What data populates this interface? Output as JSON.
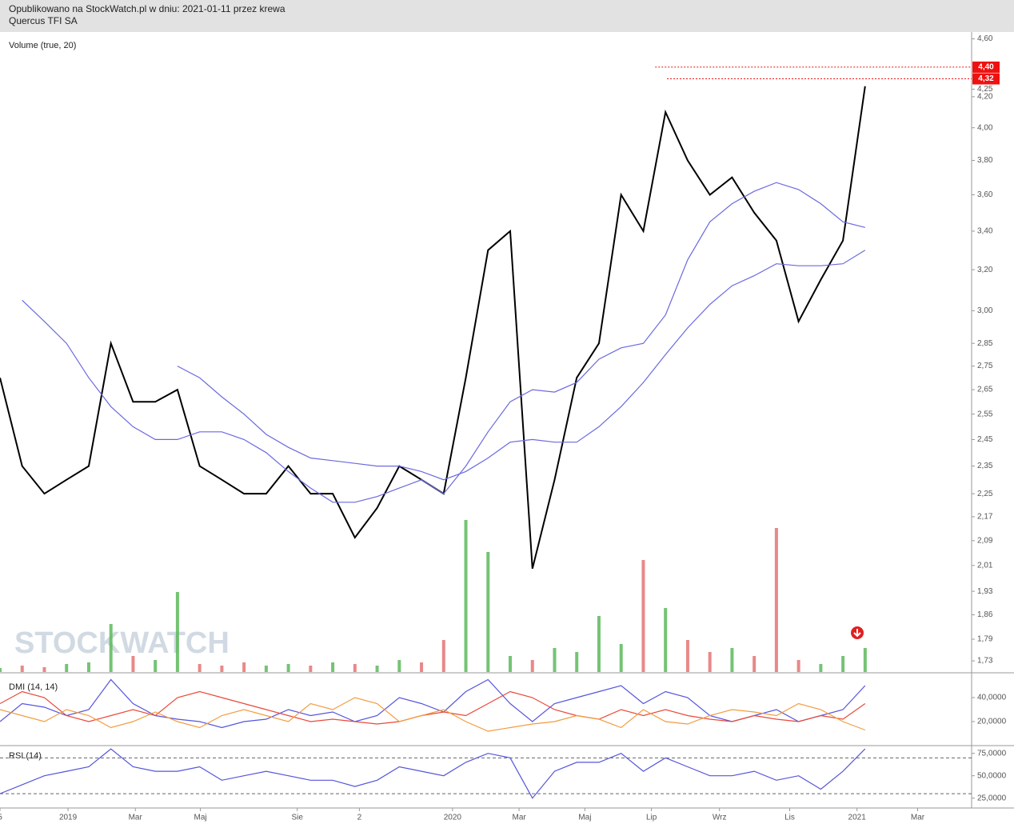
{
  "header": {
    "line1": "Opublikowano na StockWatch.pl w dniu: 2021-01-11 przez krewa",
    "line2": "Quercus TFI SA"
  },
  "watermark": "STOCKWATCH",
  "chart_data": {
    "type": "line",
    "log": true,
    "x": [
      0,
      3,
      6,
      9,
      12,
      15,
      18,
      21,
      24,
      27,
      30,
      33,
      36,
      39,
      42,
      45,
      48,
      51,
      54,
      57,
      60,
      63,
      66,
      69,
      72,
      75,
      78,
      81,
      84,
      87,
      90,
      93,
      96,
      99,
      102,
      105,
      108,
      111,
      114,
      117
    ],
    "xlim": [
      0,
      131.4
    ],
    "xticks": [
      {
        "value": 0,
        "label": "5"
      },
      {
        "value": 9.2,
        "label": "2019"
      },
      {
        "value": 18.3,
        "label": "Mar"
      },
      {
        "value": 27.1,
        "label": "Maj"
      },
      {
        "value": 40.2,
        "label": "Sie"
      },
      {
        "value": 48.6,
        "label": "2"
      },
      {
        "value": 61.2,
        "label": "2020"
      },
      {
        "value": 70.2,
        "label": "Mar"
      },
      {
        "value": 79.1,
        "label": "Maj"
      },
      {
        "value": 88.1,
        "label": "Lip"
      },
      {
        "value": 97.3,
        "label": "Wrz"
      },
      {
        "value": 106.8,
        "label": "Lis"
      },
      {
        "value": 115.9,
        "label": "2021"
      },
      {
        "value": 124.1,
        "label": "Mar"
      }
    ],
    "ylim": [
      1.7,
      4.65
    ],
    "yticks": [
      {
        "value": 4.6,
        "label": "4,60"
      },
      {
        "value": 4.25,
        "label": "4,25"
      },
      {
        "value": 4.2,
        "label": "4,20"
      },
      {
        "value": 4.0,
        "label": "4,00"
      },
      {
        "value": 3.8,
        "label": "3,80"
      },
      {
        "value": 3.6,
        "label": "3,60"
      },
      {
        "value": 3.4,
        "label": "3,40"
      },
      {
        "value": 3.2,
        "label": "3,20"
      },
      {
        "value": 3.0,
        "label": "3,00"
      },
      {
        "value": 2.85,
        "label": "2,85"
      },
      {
        "value": 2.75,
        "label": "2,75"
      },
      {
        "value": 2.65,
        "label": "2,65"
      },
      {
        "value": 2.55,
        "label": "2,55"
      },
      {
        "value": 2.45,
        "label": "2,45"
      },
      {
        "value": 2.35,
        "label": "2,35"
      },
      {
        "value": 2.25,
        "label": "2,25"
      },
      {
        "value": 2.17,
        "label": "2,17"
      },
      {
        "value": 2.09,
        "label": "2,09"
      },
      {
        "value": 2.01,
        "label": "2,01"
      },
      {
        "value": 1.93,
        "label": "1,93"
      },
      {
        "value": 1.86,
        "label": "1,86"
      },
      {
        "value": 1.79,
        "label": "1,79"
      },
      {
        "value": 1.73,
        "label": "1,73"
      }
    ],
    "markers": [
      {
        "x": 88.6,
        "value": 4.4,
        "label": "4,40",
        "color": "#ee1111"
      },
      {
        "x": 90.2,
        "value": 4.32,
        "label": "4,32",
        "color": "#ee1111"
      }
    ],
    "series": [
      {
        "color": "#000000",
        "values": [
          2.7,
          2.35,
          2.25,
          2.3,
          2.35,
          2.85,
          2.6,
          2.6,
          2.65,
          2.35,
          2.3,
          2.25,
          2.25,
          2.35,
          2.25,
          2.25,
          2.1,
          2.2,
          2.35,
          2.3,
          2.25,
          2.7,
          3.3,
          3.4,
          2.0,
          2.3,
          2.7,
          2.85,
          3.6,
          3.4,
          4.1,
          3.8,
          3.6,
          3.7,
          3.5,
          3.35,
          2.95,
          3.15,
          3.35,
          4.27
        ]
      },
      {
        "color": "#6a6ae0",
        "values": [
          null,
          3.05,
          2.95,
          2.85,
          2.7,
          2.58,
          2.5,
          2.45,
          2.45,
          2.48,
          2.48,
          2.45,
          2.4,
          2.33,
          2.27,
          2.22,
          2.22,
          2.24,
          2.27,
          2.3,
          2.25,
          2.35,
          2.48,
          2.6,
          2.65,
          2.64,
          2.68,
          2.78,
          2.83,
          2.85,
          2.98,
          3.25,
          3.45,
          3.55,
          3.62,
          3.67,
          3.63,
          3.55,
          3.45,
          3.42
        ]
      },
      {
        "color": "#6a6ae0",
        "values": [
          null,
          null,
          null,
          null,
          null,
          null,
          null,
          null,
          2.75,
          2.7,
          2.62,
          2.55,
          2.47,
          2.42,
          2.38,
          2.37,
          2.36,
          2.35,
          2.35,
          2.33,
          2.3,
          2.33,
          2.38,
          2.44,
          2.45,
          2.44,
          2.44,
          2.5,
          2.58,
          2.68,
          2.8,
          2.92,
          3.03,
          3.12,
          3.17,
          3.23,
          3.22,
          3.22,
          3.23,
          3.3
        ]
      }
    ],
    "volume": {
      "label": "Volume (true, 20)",
      "up_color": "#5cb85c",
      "down_color": "#e57373",
      "values": [
        5,
        8,
        6,
        10,
        12,
        60,
        20,
        15,
        100,
        10,
        8,
        12,
        8,
        10,
        8,
        12,
        10,
        8,
        15,
        12,
        40,
        190,
        150,
        20,
        15,
        30,
        25,
        70,
        35,
        140,
        80,
        40,
        25,
        30,
        20,
        180,
        15,
        10,
        20,
        30
      ]
    },
    "dmi": {
      "label": "DMI (14, 14)",
      "ylim": [
        1.3,
        58
      ],
      "yticks": [
        {
          "value": 40,
          "label": "40,0000"
        },
        {
          "value": 20,
          "label": "20,0000"
        }
      ],
      "series": [
        {
          "color": "#5555dd",
          "values": [
            20,
            35,
            32,
            25,
            30,
            55,
            35,
            25,
            22,
            20,
            15,
            20,
            22,
            30,
            25,
            28,
            20,
            25,
            40,
            35,
            28,
            45,
            55,
            35,
            20,
            35,
            40,
            45,
            50,
            35,
            45,
            40,
            25,
            20,
            25,
            30,
            20,
            25,
            30,
            50
          ]
        },
        {
          "color": "#e84a3a",
          "values": [
            35,
            45,
            40,
            25,
            20,
            25,
            30,
            25,
            40,
            45,
            40,
            35,
            30,
            25,
            20,
            22,
            20,
            18,
            20,
            25,
            28,
            25,
            35,
            45,
            40,
            30,
            25,
            22,
            30,
            25,
            30,
            25,
            22,
            20,
            25,
            22,
            20,
            25,
            22,
            35
          ]
        },
        {
          "color": "#f39c40",
          "values": [
            30,
            25,
            20,
            30,
            25,
            15,
            20,
            28,
            20,
            15,
            25,
            30,
            25,
            20,
            35,
            30,
            40,
            35,
            20,
            25,
            30,
            20,
            12,
            15,
            18,
            20,
            25,
            22,
            15,
            30,
            20,
            18,
            25,
            30,
            28,
            25,
            35,
            30,
            20,
            13
          ]
        }
      ]
    },
    "rsi": {
      "label": "RSI (14)",
      "ylim": [
        14,
        81
      ],
      "yticks": [
        {
          "value": 75,
          "label": "75,0000"
        },
        {
          "value": 50,
          "label": "50,0000"
        },
        {
          "value": 25,
          "label": "25,0000"
        }
      ],
      "levels": [
        70,
        30
      ],
      "series": [
        {
          "color": "#5555dd",
          "values": [
            30,
            40,
            50,
            55,
            60,
            80,
            60,
            55,
            55,
            60,
            45,
            50,
            55,
            50,
            45,
            45,
            38,
            45,
            60,
            55,
            50,
            65,
            75,
            70,
            25,
            55,
            65,
            65,
            75,
            55,
            70,
            60,
            50,
            50,
            55,
            45,
            50,
            35,
            55,
            80
          ]
        }
      ]
    }
  }
}
